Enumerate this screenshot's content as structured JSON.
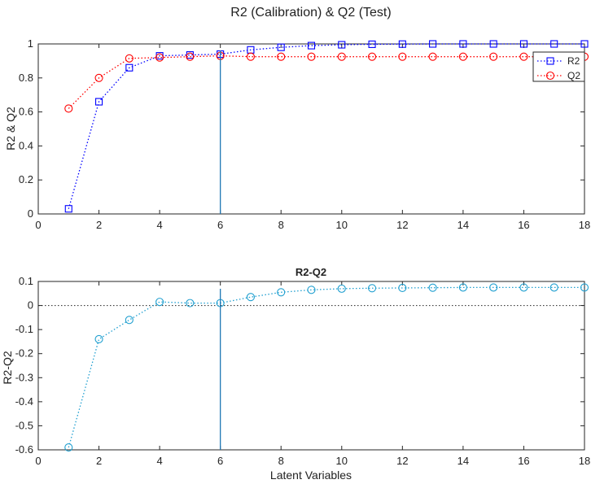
{
  "chart_data": [
    {
      "type": "line",
      "title": "R2 (Calibration) & Q2 (Test)",
      "xlabel": "",
      "ylabel": "R2 & Q2",
      "xlim": [
        0,
        18
      ],
      "ylim": [
        0,
        1
      ],
      "xticks": [
        "0",
        "2",
        "4",
        "6",
        "8",
        "10",
        "12",
        "14",
        "16",
        "18"
      ],
      "yticks": [
        "0",
        "0.2",
        "0.4",
        "0.6",
        "0.8",
        "1"
      ],
      "grid": false,
      "legend": "top-right",
      "vline_x": 6,
      "x": [
        1,
        2,
        3,
        4,
        5,
        6,
        7,
        8,
        9,
        10,
        11,
        12,
        13,
        14,
        15,
        16,
        17,
        18
      ],
      "series": [
        {
          "name": "R2",
          "marker": "square",
          "color": "#0000ff",
          "values": [
            0.03,
            0.66,
            0.86,
            0.93,
            0.935,
            0.94,
            0.965,
            0.98,
            0.99,
            0.995,
            0.998,
            0.999,
            1.0,
            1.0,
            1.0,
            1.0,
            1.0,
            1.0
          ]
        },
        {
          "name": "Q2",
          "marker": "circle",
          "color": "#ff0000",
          "values": [
            0.62,
            0.8,
            0.915,
            0.92,
            0.925,
            0.93,
            0.925,
            0.925,
            0.925,
            0.925,
            0.925,
            0.925,
            0.925,
            0.925,
            0.925,
            0.925,
            0.925,
            0.925
          ]
        }
      ]
    },
    {
      "type": "line",
      "title": "R2-Q2",
      "xlabel": "Latent Variables",
      "ylabel": "R2-Q2",
      "xlim": [
        0,
        18
      ],
      "ylim": [
        -0.6,
        0.1
      ],
      "xticks": [
        "0",
        "2",
        "4",
        "6",
        "8",
        "10",
        "12",
        "14",
        "16",
        "18"
      ],
      "yticks": [
        "-0.6",
        "-0.5",
        "-0.4",
        "-0.3",
        "-0.2",
        "-0.1",
        "0",
        "0.1"
      ],
      "grid": false,
      "hline_y": 0,
      "vline_x": 6,
      "x": [
        1,
        2,
        3,
        4,
        5,
        6,
        7,
        8,
        9,
        10,
        11,
        12,
        13,
        14,
        15,
        16,
        17,
        18
      ],
      "series": [
        {
          "marker": "circle",
          "color": "#1f9fd0",
          "values": [
            -0.59,
            -0.14,
            -0.06,
            0.015,
            0.01,
            0.01,
            0.035,
            0.055,
            0.065,
            0.07,
            0.072,
            0.073,
            0.074,
            0.075,
            0.075,
            0.075,
            0.075,
            0.075
          ]
        }
      ]
    }
  ]
}
